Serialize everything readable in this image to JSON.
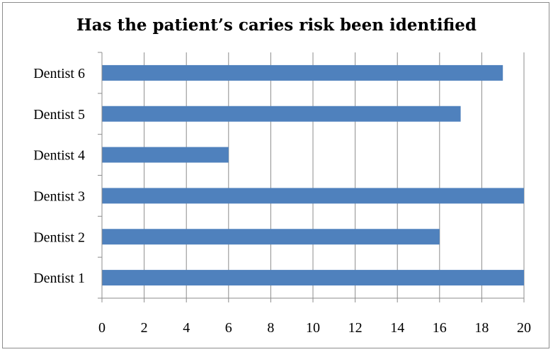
{
  "chart_data": {
    "type": "bar",
    "orientation": "horizontal",
    "title": "Has the patient’s caries risk been identified",
    "categories": [
      "Dentist 1",
      "Dentist 2",
      "Dentist 3",
      "Dentist 4",
      "Dentist 5",
      "Dentist 6"
    ],
    "values": [
      20,
      16,
      20,
      6,
      17,
      19
    ],
    "xlim": [
      0,
      20
    ],
    "xticks": [
      0,
      2,
      4,
      6,
      8,
      10,
      12,
      14,
      16,
      18,
      20
    ],
    "xlabel": "",
    "ylabel": "",
    "grid": "vertical",
    "legend": "none",
    "bar_color": "#4f81bd"
  }
}
